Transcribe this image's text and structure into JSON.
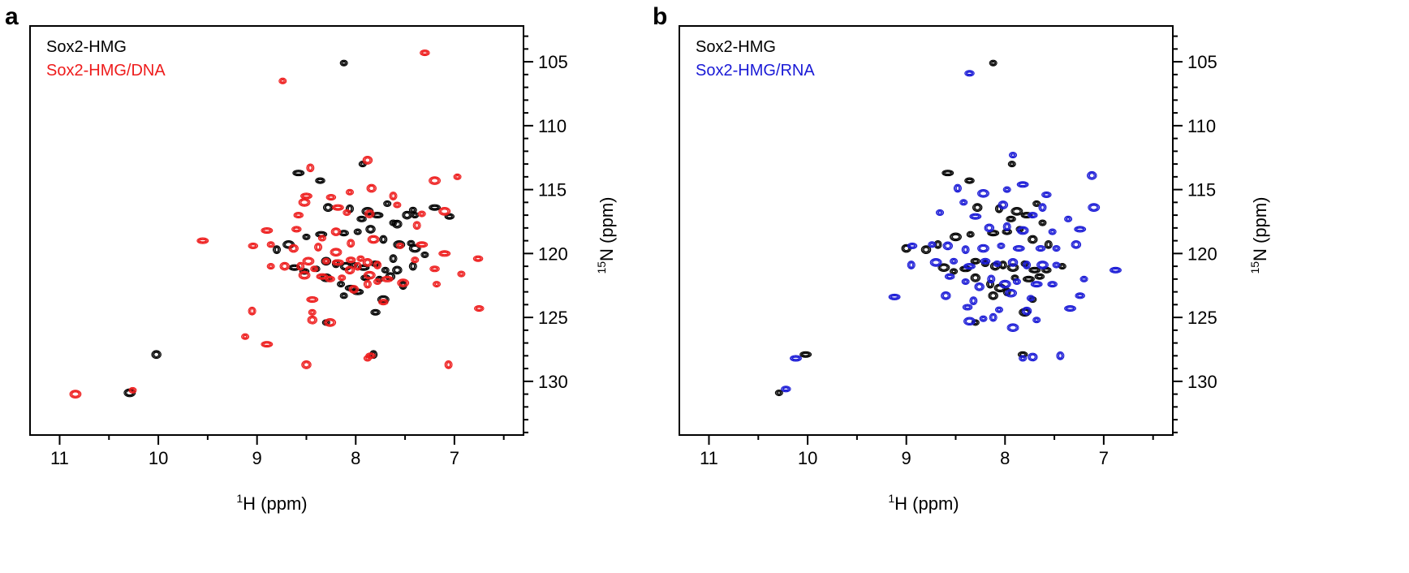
{
  "chart_data": [
    {
      "panel_label": "a",
      "type": "scatter",
      "plot_kind": "2D 1H-15N HSQC contour overlay",
      "xlabel_sup": "1",
      "xlabel_main": "H (ppm)",
      "ylabel_sup": "15",
      "ylabel_main": "N (ppm)",
      "x_reversed": true,
      "y_reversed": true,
      "xlim": [
        11.3,
        6.3
      ],
      "ylim": [
        102.2,
        134.2
      ],
      "xticks": [
        11,
        10,
        9,
        8,
        7
      ],
      "yticks": [
        105,
        110,
        115,
        120,
        125,
        130
      ],
      "legend_position": "top-left",
      "series": [
        {
          "name": "Sox2-HMG",
          "color": "#000000",
          "points": [
            [
              8.12,
              105.1
            ],
            [
              8.58,
              113.7
            ],
            [
              8.36,
              114.3
            ],
            [
              7.93,
              113.0
            ],
            [
              8.28,
              116.4
            ],
            [
              8.06,
              116.5
            ],
            [
              7.88,
              116.7
            ],
            [
              7.68,
              116.1
            ],
            [
              7.78,
              117.0
            ],
            [
              7.94,
              117.3
            ],
            [
              7.62,
              117.6
            ],
            [
              7.48,
              117.0
            ],
            [
              8.8,
              119.7
            ],
            [
              8.68,
              119.3
            ],
            [
              8.5,
              118.7
            ],
            [
              8.35,
              118.5
            ],
            [
              8.12,
              118.4
            ],
            [
              7.98,
              118.3
            ],
            [
              7.85,
              118.1
            ],
            [
              7.72,
              118.9
            ],
            [
              7.56,
              119.3
            ],
            [
              7.44,
              119.2
            ],
            [
              8.62,
              121.1
            ],
            [
              8.52,
              121.4
            ],
            [
              8.4,
              121.2
            ],
            [
              8.3,
              120.6
            ],
            [
              8.2,
              120.8
            ],
            [
              8.1,
              121.0
            ],
            [
              8.02,
              120.9
            ],
            [
              7.92,
              121.1
            ],
            [
              7.8,
              120.8
            ],
            [
              7.7,
              121.3
            ],
            [
              7.58,
              121.3
            ],
            [
              7.42,
              121.0
            ],
            [
              8.3,
              121.9
            ],
            [
              8.15,
              122.4
            ],
            [
              8.05,
              122.7
            ],
            [
              7.9,
              121.9
            ],
            [
              7.76,
              122.0
            ],
            [
              7.65,
              121.8
            ],
            [
              7.52,
              122.5
            ],
            [
              7.72,
              123.6
            ],
            [
              8.12,
              123.3
            ],
            [
              7.98,
              123.0
            ],
            [
              7.8,
              124.6
            ],
            [
              8.3,
              125.4
            ],
            [
              10.02,
              127.9
            ],
            [
              7.82,
              127.9
            ],
            [
              10.29,
              130.9
            ],
            [
              7.42,
              116.6
            ],
            [
              7.2,
              116.4
            ],
            [
              7.05,
              117.1
            ],
            [
              7.4,
              117.0
            ],
            [
              7.58,
              117.7
            ],
            [
              7.62,
              120.4
            ],
            [
              7.4,
              119.6
            ],
            [
              7.3,
              120.1
            ]
          ]
        },
        {
          "name": "Sox2-HMG/DNA",
          "color": "#ee1c1c",
          "points": [
            [
              7.3,
              104.3
            ],
            [
              8.74,
              106.5
            ],
            [
              7.88,
              112.7
            ],
            [
              8.46,
              113.3
            ],
            [
              7.2,
              114.3
            ],
            [
              6.97,
              114.0
            ],
            [
              8.5,
              115.5
            ],
            [
              8.25,
              115.6
            ],
            [
              8.06,
              115.2
            ],
            [
              7.84,
              114.9
            ],
            [
              7.62,
              115.5
            ],
            [
              8.52,
              116.0
            ],
            [
              7.58,
              116.2
            ],
            [
              8.18,
              116.4
            ],
            [
              8.58,
              117.0
            ],
            [
              8.09,
              116.8
            ],
            [
              7.86,
              116.9
            ],
            [
              7.38,
              117.8
            ],
            [
              7.1,
              116.7
            ],
            [
              7.33,
              116.9
            ],
            [
              8.9,
              118.2
            ],
            [
              8.6,
              118.1
            ],
            [
              8.34,
              118.8
            ],
            [
              8.2,
              118.3
            ],
            [
              8.05,
              119.2
            ],
            [
              7.82,
              118.9
            ],
            [
              7.55,
              119.4
            ],
            [
              7.33,
              119.3
            ],
            [
              9.04,
              119.4
            ],
            [
              8.86,
              119.3
            ],
            [
              8.63,
              119.6
            ],
            [
              8.38,
              119.5
            ],
            [
              8.2,
              119.9
            ],
            [
              7.4,
              120.5
            ],
            [
              7.1,
              120.0
            ],
            [
              6.76,
              120.4
            ],
            [
              8.86,
              121.0
            ],
            [
              8.72,
              121.0
            ],
            [
              8.56,
              121.0
            ],
            [
              8.48,
              120.6
            ],
            [
              8.3,
              120.6
            ],
            [
              8.18,
              120.7
            ],
            [
              8.05,
              120.5
            ],
            [
              7.95,
              120.4
            ],
            [
              7.88,
              120.7
            ],
            [
              7.78,
              120.9
            ],
            [
              8.52,
              121.7
            ],
            [
              8.42,
              121.2
            ],
            [
              8.34,
              121.8
            ],
            [
              8.26,
              122.0
            ],
            [
              8.14,
              121.9
            ],
            [
              8.06,
              121.3
            ],
            [
              7.98,
              121.0
            ],
            [
              7.86,
              121.7
            ],
            [
              7.78,
              122.2
            ],
            [
              7.68,
              122.0
            ],
            [
              7.2,
              121.2
            ],
            [
              6.93,
              121.6
            ],
            [
              8.02,
              122.8
            ],
            [
              7.88,
              122.4
            ],
            [
              7.52,
              122.3
            ],
            [
              7.18,
              122.4
            ],
            [
              8.44,
              123.6
            ],
            [
              7.72,
              123.8
            ],
            [
              8.44,
              124.6
            ],
            [
              8.44,
              125.2
            ],
            [
              9.05,
              124.5
            ],
            [
              8.26,
              125.4
            ],
            [
              9.12,
              126.5
            ],
            [
              8.9,
              127.1
            ],
            [
              7.85,
              128.0
            ],
            [
              7.88,
              128.2
            ],
            [
              8.5,
              128.7
            ],
            [
              7.06,
              128.7
            ],
            [
              10.84,
              131.0
            ],
            [
              10.26,
              130.7
            ],
            [
              9.55,
              119.0
            ],
            [
              6.75,
              124.3
            ]
          ]
        }
      ]
    },
    {
      "panel_label": "b",
      "type": "scatter",
      "plot_kind": "2D 1H-15N HSQC contour overlay",
      "xlabel_sup": "1",
      "xlabel_main": "H (ppm)",
      "ylabel_sup": "15",
      "ylabel_main": "N (ppm)",
      "x_reversed": true,
      "y_reversed": true,
      "xlim": [
        11.3,
        6.3
      ],
      "ylim": [
        102.2,
        134.2
      ],
      "xticks": [
        11,
        10,
        9,
        8,
        7
      ],
      "yticks": [
        105,
        110,
        115,
        120,
        125,
        130
      ],
      "legend_position": "top-left",
      "series": [
        {
          "name": "Sox2-HMG",
          "color": "#000000",
          "points": [
            [
              8.12,
              105.1
            ],
            [
              8.58,
              113.7
            ],
            [
              8.36,
              114.3
            ],
            [
              7.93,
              113.0
            ],
            [
              8.28,
              116.4
            ],
            [
              8.06,
              116.5
            ],
            [
              7.88,
              116.7
            ],
            [
              7.68,
              116.1
            ],
            [
              7.78,
              117.0
            ],
            [
              7.94,
              117.3
            ],
            [
              7.62,
              117.6
            ],
            [
              8.8,
              119.7
            ],
            [
              8.68,
              119.3
            ],
            [
              8.5,
              118.7
            ],
            [
              8.35,
              118.5
            ],
            [
              8.12,
              118.4
            ],
            [
              7.98,
              118.3
            ],
            [
              7.85,
              118.1
            ],
            [
              7.72,
              118.9
            ],
            [
              7.56,
              119.3
            ],
            [
              8.62,
              121.1
            ],
            [
              8.52,
              121.4
            ],
            [
              8.4,
              121.2
            ],
            [
              8.3,
              120.6
            ],
            [
              8.2,
              120.8
            ],
            [
              8.1,
              121.0
            ],
            [
              8.02,
              120.9
            ],
            [
              7.92,
              121.1
            ],
            [
              7.8,
              120.8
            ],
            [
              7.7,
              121.3
            ],
            [
              7.58,
              121.3
            ],
            [
              7.42,
              121.0
            ],
            [
              8.3,
              121.9
            ],
            [
              8.15,
              122.4
            ],
            [
              8.05,
              122.7
            ],
            [
              7.9,
              121.9
            ],
            [
              7.76,
              122.0
            ],
            [
              7.65,
              121.8
            ],
            [
              7.72,
              123.6
            ],
            [
              8.12,
              123.3
            ],
            [
              7.98,
              123.0
            ],
            [
              7.8,
              124.6
            ],
            [
              8.3,
              125.4
            ],
            [
              10.02,
              127.9
            ],
            [
              7.82,
              127.9
            ],
            [
              10.29,
              130.9
            ],
            [
              9.0,
              119.6
            ]
          ]
        },
        {
          "name": "Sox2-HMG/RNA",
          "color": "#1a1ad6",
          "points": [
            [
              8.36,
              105.9
            ],
            [
              7.92,
              112.3
            ],
            [
              7.12,
              113.9
            ],
            [
              8.48,
              114.9
            ],
            [
              8.22,
              115.3
            ],
            [
              7.98,
              115.0
            ],
            [
              7.82,
              114.6
            ],
            [
              7.58,
              115.4
            ],
            [
              8.42,
              116.0
            ],
            [
              8.02,
              116.2
            ],
            [
              7.62,
              116.4
            ],
            [
              7.1,
              116.4
            ],
            [
              8.66,
              116.8
            ],
            [
              8.3,
              117.1
            ],
            [
              7.72,
              117.0
            ],
            [
              7.36,
              117.3
            ],
            [
              8.16,
              118.0
            ],
            [
              7.98,
              117.9
            ],
            [
              7.82,
              118.2
            ],
            [
              7.52,
              118.3
            ],
            [
              7.24,
              118.1
            ],
            [
              8.94,
              119.4
            ],
            [
              8.74,
              119.3
            ],
            [
              8.58,
              119.4
            ],
            [
              8.4,
              119.7
            ],
            [
              8.22,
              119.6
            ],
            [
              8.04,
              119.4
            ],
            [
              7.86,
              119.6
            ],
            [
              7.64,
              119.6
            ],
            [
              7.48,
              119.6
            ],
            [
              7.28,
              119.3
            ],
            [
              8.95,
              120.9
            ],
            [
              8.7,
              120.7
            ],
            [
              8.52,
              120.6
            ],
            [
              8.36,
              121.0
            ],
            [
              8.2,
              120.6
            ],
            [
              8.08,
              120.8
            ],
            [
              7.92,
              120.7
            ],
            [
              7.78,
              120.9
            ],
            [
              7.62,
              120.9
            ],
            [
              7.48,
              120.9
            ],
            [
              6.88,
              121.3
            ],
            [
              8.56,
              121.8
            ],
            [
              8.4,
              122.2
            ],
            [
              8.26,
              122.6
            ],
            [
              8.14,
              122.0
            ],
            [
              8.0,
              122.4
            ],
            [
              7.88,
              122.2
            ],
            [
              7.68,
              122.4
            ],
            [
              7.52,
              122.4
            ],
            [
              7.2,
              122.0
            ],
            [
              8.6,
              123.3
            ],
            [
              8.32,
              123.7
            ],
            [
              7.94,
              123.1
            ],
            [
              7.74,
              123.5
            ],
            [
              9.12,
              123.4
            ],
            [
              8.38,
              124.2
            ],
            [
              8.06,
              124.4
            ],
            [
              7.78,
              124.5
            ],
            [
              8.12,
              125.0
            ],
            [
              8.36,
              125.3
            ],
            [
              8.22,
              125.1
            ],
            [
              10.12,
              128.2
            ],
            [
              10.22,
              130.6
            ],
            [
              7.82,
              128.2
            ],
            [
              7.72,
              128.1
            ],
            [
              7.44,
              128.0
            ],
            [
              7.92,
              125.8
            ],
            [
              7.68,
              125.2
            ],
            [
              7.34,
              124.3
            ],
            [
              7.24,
              123.3
            ]
          ]
        }
      ]
    }
  ]
}
